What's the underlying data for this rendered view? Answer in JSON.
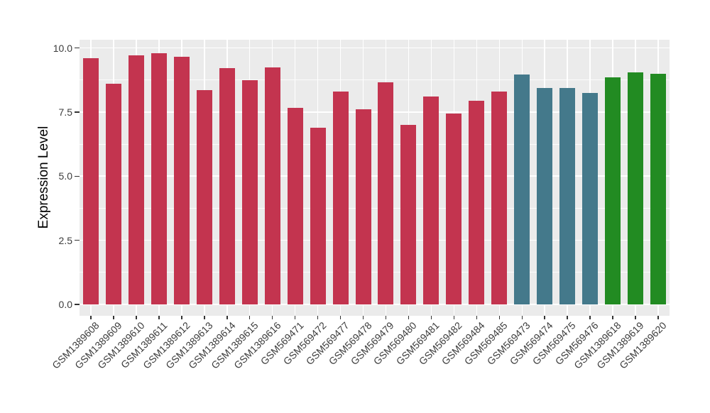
{
  "figure": {
    "background": "#FFFFFF",
    "panel_background": "#EBEBEB",
    "grid_color": "#FFFFFF",
    "tick_mark_color": "#333333",
    "tick_label_color": "#3c3c3c",
    "axis_title_color": "#000000"
  },
  "chart_data": {
    "type": "bar",
    "title": "",
    "xlabel": "",
    "ylabel": "Expression Level",
    "ylim": [
      0,
      10.3
    ],
    "yticks": [
      0,
      2.5,
      5,
      7.5,
      10
    ],
    "ytick_labels": [
      "0.0",
      "2.5",
      "5.0",
      "7.5",
      "10.0"
    ],
    "yminor_ticks": [
      1.25,
      3.75,
      6.25,
      8.75
    ],
    "grid": "major+minor horizontal, major vertical at bar centers",
    "legend_position": "none",
    "groups": [
      {
        "name": "series-red",
        "color": "#C3344F"
      },
      {
        "name": "series-teal",
        "color": "#44798B"
      },
      {
        "name": "series-green",
        "color": "#228B22"
      }
    ],
    "categories": [
      "GSM1389608",
      "GSM1389609",
      "GSM1389610",
      "GSM1389611",
      "GSM1389612",
      "GSM1389613",
      "GSM1389614",
      "GSM1389615",
      "GSM1389616",
      "GSM569471",
      "GSM569472",
      "GSM569477",
      "GSM569478",
      "GSM569479",
      "GSM569480",
      "GSM569481",
      "GSM569482",
      "GSM569484",
      "GSM569485",
      "GSM569473",
      "GSM569474",
      "GSM569475",
      "GSM569476",
      "GSM1389618",
      "GSM1389619",
      "GSM1389620"
    ],
    "values": [
      9.6,
      8.6,
      9.7,
      9.8,
      9.65,
      8.35,
      9.2,
      8.75,
      9.25,
      7.65,
      6.9,
      8.3,
      7.6,
      8.65,
      7.0,
      8.1,
      7.45,
      7.95,
      8.3,
      8.95,
      8.45,
      8.45,
      8.25,
      8.85,
      9.05,
      9.0
    ],
    "bar_groups": [
      0,
      0,
      0,
      0,
      0,
      0,
      0,
      0,
      0,
      0,
      0,
      0,
      0,
      0,
      0,
      0,
      0,
      0,
      0,
      1,
      1,
      1,
      1,
      2,
      2,
      2
    ]
  }
}
